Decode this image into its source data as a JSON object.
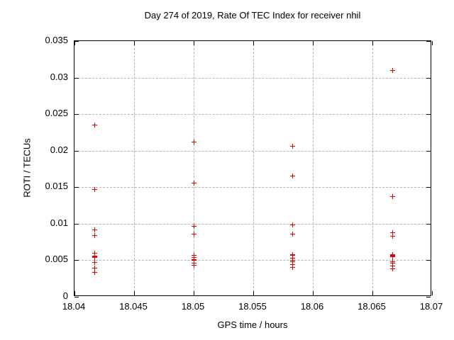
{
  "chart_data": {
    "type": "scatter",
    "title": "Day 274 of 2019, Rate Of TEC Index for receiver nhil",
    "xlabel": "GPS time / hours",
    "ylabel": "ROTI / TECUs",
    "xlim": [
      18.04,
      18.07
    ],
    "ylim": [
      0,
      0.035
    ],
    "x_ticks": [
      18.04,
      18.045,
      18.05,
      18.055,
      18.06,
      18.065,
      18.07
    ],
    "x_tick_labels": [
      "18.04",
      "18.045",
      "18.05",
      "18.055",
      "18.06",
      "18.065",
      "18.07"
    ],
    "y_ticks": [
      0,
      0.005,
      0.01,
      0.015,
      0.02,
      0.025,
      0.03,
      0.035
    ],
    "y_tick_labels": [
      "0",
      "0.005",
      "0.01",
      "0.015",
      "0.02",
      "0.025",
      "0.03",
      "0.035"
    ],
    "grid": true,
    "legend": "none",
    "marker": {
      "shape": "plus",
      "color": "#e00000",
      "size": 7
    },
    "series": [
      {
        "name": "ROTI",
        "points": [
          [
            18.0417,
            0.0235
          ],
          [
            18.0417,
            0.0147
          ],
          [
            18.0417,
            0.0092
          ],
          [
            18.0417,
            0.0084
          ],
          [
            18.0417,
            0.006
          ],
          [
            18.0417,
            0.0056
          ],
          [
            18.0417,
            0.0055
          ],
          [
            18.0417,
            0.0054
          ],
          [
            18.0417,
            0.0047
          ],
          [
            18.0417,
            0.0039
          ],
          [
            18.0417,
            0.0033
          ],
          [
            18.05,
            0.0212
          ],
          [
            18.05,
            0.0156
          ],
          [
            18.05,
            0.0096
          ],
          [
            18.05,
            0.0086
          ],
          [
            18.05,
            0.0057
          ],
          [
            18.05,
            0.0054
          ],
          [
            18.05,
            0.0051
          ],
          [
            18.05,
            0.005
          ],
          [
            18.05,
            0.0046
          ],
          [
            18.05,
            0.0043
          ],
          [
            18.0583,
            0.0206
          ],
          [
            18.0583,
            0.0165
          ],
          [
            18.0583,
            0.0098
          ],
          [
            18.0583,
            0.0086
          ],
          [
            18.0583,
            0.0058
          ],
          [
            18.0583,
            0.0057
          ],
          [
            18.0583,
            0.0053
          ],
          [
            18.0583,
            0.005
          ],
          [
            18.0583,
            0.0048
          ],
          [
            18.0583,
            0.0044
          ],
          [
            18.0583,
            0.004
          ],
          [
            18.0667,
            0.031
          ],
          [
            18.0667,
            0.0137
          ],
          [
            18.0667,
            0.0088
          ],
          [
            18.0667,
            0.0083
          ],
          [
            18.0667,
            0.0058
          ],
          [
            18.0667,
            0.0057
          ],
          [
            18.0667,
            0.0056
          ],
          [
            18.0667,
            0.0055
          ],
          [
            18.0667,
            0.0048
          ],
          [
            18.0667,
            0.0046
          ],
          [
            18.0667,
            0.0042
          ],
          [
            18.0667,
            0.0038
          ]
        ]
      }
    ]
  }
}
